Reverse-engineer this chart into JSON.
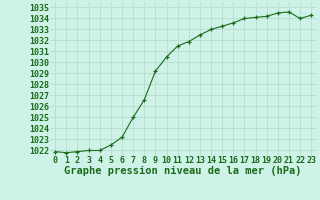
{
  "x": [
    0,
    1,
    2,
    3,
    4,
    5,
    6,
    7,
    8,
    9,
    10,
    11,
    12,
    13,
    14,
    15,
    16,
    17,
    18,
    19,
    20,
    21,
    22,
    23
  ],
  "y": [
    1021.9,
    1021.8,
    1021.9,
    1022.0,
    1022.0,
    1022.5,
    1023.2,
    1025.0,
    1026.6,
    1029.2,
    1030.5,
    1031.5,
    1031.9,
    1032.5,
    1033.0,
    1033.3,
    1033.6,
    1034.0,
    1034.1,
    1034.2,
    1034.5,
    1034.6,
    1034.0,
    1034.3
  ],
  "ylim": [
    1021.5,
    1035.5
  ],
  "yticks": [
    1022,
    1023,
    1024,
    1025,
    1026,
    1027,
    1028,
    1029,
    1030,
    1031,
    1032,
    1033,
    1034,
    1035
  ],
  "xticks": [
    0,
    1,
    2,
    3,
    4,
    5,
    6,
    7,
    8,
    9,
    10,
    11,
    12,
    13,
    14,
    15,
    16,
    17,
    18,
    19,
    20,
    21,
    22,
    23
  ],
  "line_color": "#1a6b1a",
  "marker_color": "#1a6b1a",
  "bg_color": "#cff2e8",
  "grid_color": "#b0d9c8",
  "text_color": "#1a6b1a",
  "title": "Graphe pression niveau de la mer (hPa)",
  "title_fontsize": 7.5,
  "tick_fontsize": 6,
  "bottom_label_color": "#1a5c1a",
  "xlim": [
    -0.5,
    23.5
  ]
}
